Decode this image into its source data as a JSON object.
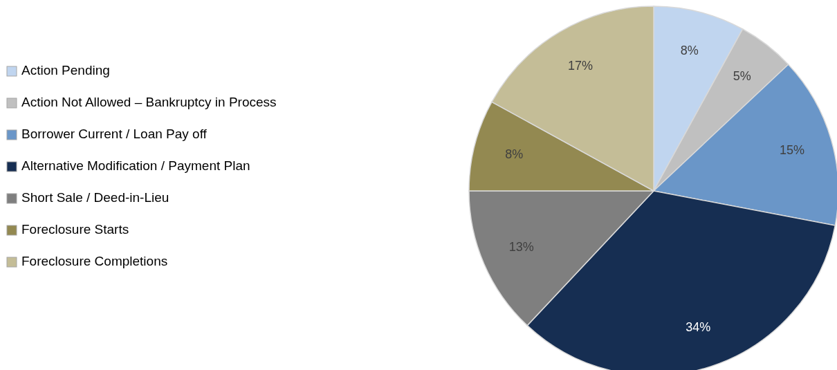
{
  "chart_data": {
    "type": "pie",
    "categories": [
      "Action Pending",
      "Action Not Allowed – Bankruptcy in Process",
      "Borrower Current / Loan Pay off",
      "Alternative Modification / Payment Plan",
      "Short Sale / Deed-in-Lieu",
      "Foreclosure Starts",
      "Foreclosure Completions"
    ],
    "values": [
      8,
      5,
      15,
      34,
      13,
      8,
      17
    ],
    "colors": [
      "#c0d5ef",
      "#c0c0c0",
      "#6a96c8",
      "#162e52",
      "#7f7f7f",
      "#938951",
      "#c4bd97"
    ],
    "value_labels": [
      "8%",
      "5%",
      "15%",
      "34%",
      "13%",
      "8%",
      "17%"
    ],
    "legend": "left"
  }
}
